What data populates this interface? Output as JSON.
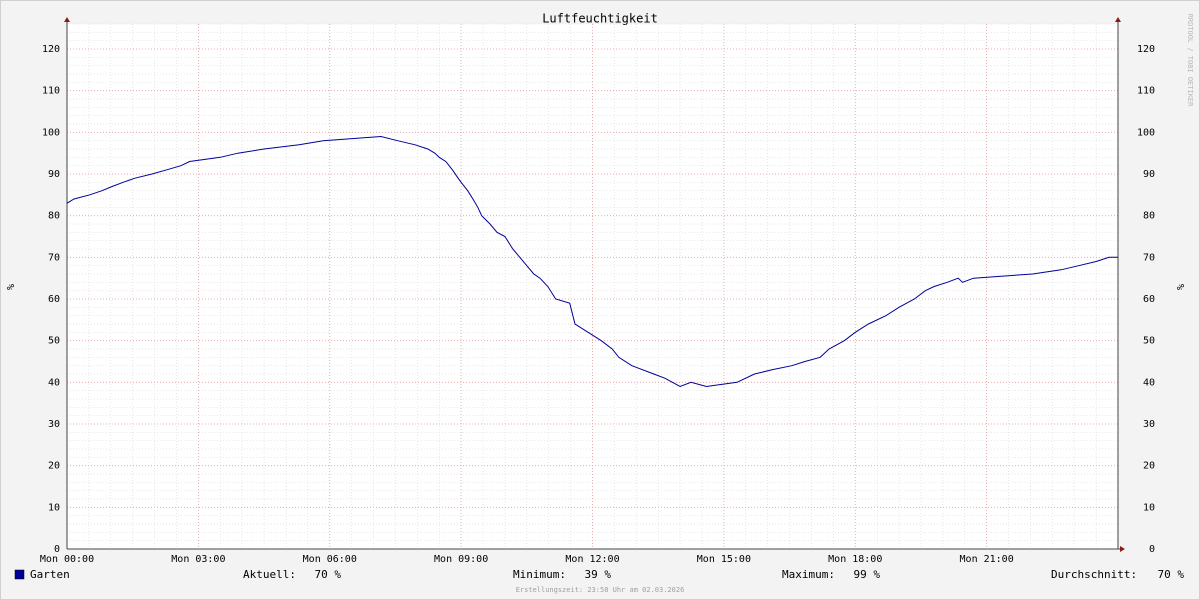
{
  "chart_data": {
    "type": "line",
    "title": "Luftfeuchtigkeit",
    "y_label": "%",
    "watermark": "RRDTOOL / TOBI OETIKER",
    "footer": "Erstellungszeit: 23:58 Uhr am 02.03.2026",
    "xlim": [
      0,
      24
    ],
    "xticks": [
      {
        "value": 0,
        "label": "Mon 00:00"
      },
      {
        "value": 3,
        "label": "Mon 03:00"
      },
      {
        "value": 6,
        "label": "Mon 06:00"
      },
      {
        "value": 9,
        "label": "Mon 09:00"
      },
      {
        "value": 12,
        "label": "Mon 12:00"
      },
      {
        "value": 15,
        "label": "Mon 15:00"
      },
      {
        "value": 18,
        "label": "Mon 18:00"
      },
      {
        "value": 21,
        "label": "Mon 21:00"
      }
    ],
    "ylim": [
      0,
      126
    ],
    "yticks": [
      0,
      10,
      20,
      30,
      40,
      50,
      60,
      70,
      80,
      90,
      100,
      110,
      120
    ],
    "grid": true,
    "x": [
      0,
      0.16,
      0.52,
      0.8,
      1.03,
      1.28,
      1.55,
      1.94,
      2.28,
      2.6,
      2.8,
      3.5,
      3.9,
      4.5,
      5.3,
      5.85,
      7.17,
      7.55,
      7.95,
      8.24,
      8.4,
      8.5,
      8.65,
      8.8,
      8.93,
      9.0,
      9.15,
      9.27,
      9.38,
      9.47,
      9.66,
      9.82,
      10.0,
      10.18,
      10.34,
      10.5,
      10.66,
      10.8,
      10.98,
      11.16,
      11.48,
      11.6,
      11.9,
      12.2,
      12.45,
      12.6,
      12.9,
      13.4,
      13.65,
      14.0,
      14.25,
      14.6,
      15.3,
      15.7,
      16.1,
      16.55,
      16.85,
      17.2,
      17.4,
      17.75,
      18.0,
      18.3,
      18.7,
      19.0,
      19.35,
      19.6,
      19.8,
      20.1,
      20.35,
      20.45,
      20.7,
      22.05,
      22.7,
      23.1,
      23.5,
      23.8,
      24
    ],
    "series": [
      {
        "name": "Garten",
        "color": "#000099",
        "values": [
          83,
          84,
          85,
          86,
          87,
          88,
          89,
          90,
          91,
          92,
          93,
          94,
          95,
          96,
          97,
          98,
          99,
          98,
          97,
          96,
          95,
          94,
          93,
          91,
          89,
          88,
          86,
          84,
          82,
          80,
          78,
          76,
          75,
          72,
          70,
          68,
          66,
          65,
          63,
          60,
          59,
          54,
          52,
          50,
          48,
          46,
          44,
          42,
          41,
          39,
          40,
          39,
          40,
          42,
          43,
          44,
          45,
          46,
          48,
          50,
          52,
          54,
          56,
          58,
          60,
          62,
          63,
          64,
          65,
          64,
          65,
          66,
          67,
          68,
          69,
          70,
          70
        ]
      }
    ],
    "stats": [
      {
        "label": "Aktuell:",
        "value": "70 %"
      },
      {
        "label": "Minimum:",
        "value": "39 %"
      },
      {
        "label": "Maximum:",
        "value": "99 %"
      },
      {
        "label": "Durchschnitt:",
        "value": "70 %"
      }
    ]
  }
}
